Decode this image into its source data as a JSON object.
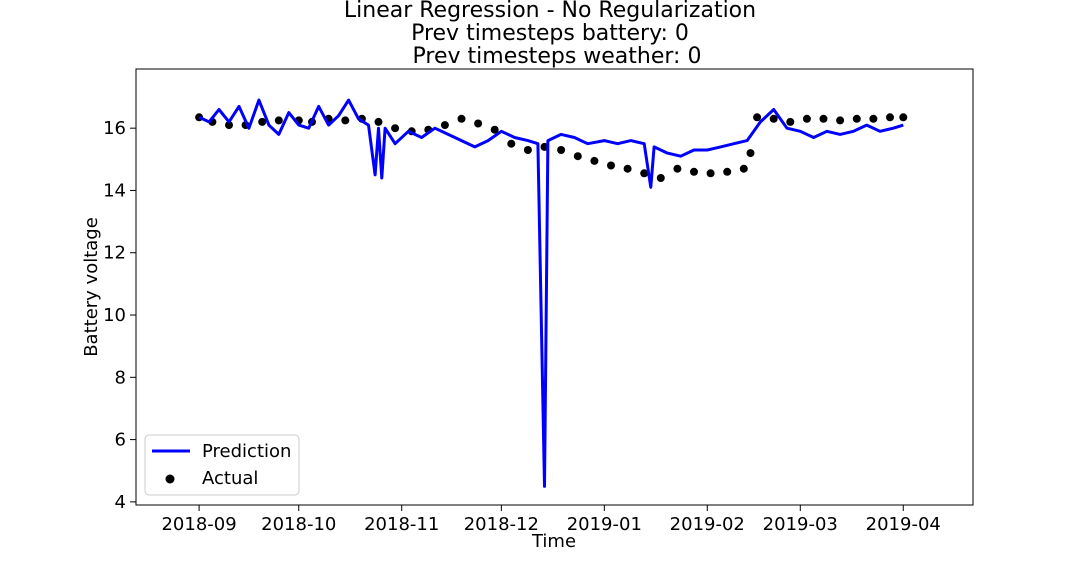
{
  "chart_data": {
    "type": "line",
    "title": [
      "Linear Regression - No Regularization",
      "Prev timesteps battery: 0",
      "Prev timesteps weather: 0"
    ],
    "xlabel": "Time",
    "ylabel": "Battery voltage",
    "xlim": [
      "2018-08-13",
      "2019-04-22"
    ],
    "ylim": [
      3.9,
      17.9
    ],
    "x_ticks": [
      "2018-09-01",
      "2018-10-01",
      "2018-11-01",
      "2018-12-01",
      "2019-01-01",
      "2019-02-01",
      "2019-03-01",
      "2019-04-01"
    ],
    "x_tick_labels": [
      "2018-09",
      "2018-10",
      "2018-11",
      "2018-12",
      "2019-01",
      "2019-02",
      "2019-03",
      "2019-04"
    ],
    "y_ticks": [
      4,
      6,
      8,
      10,
      12,
      14,
      16
    ],
    "y_tick_labels": [
      "4",
      "6",
      "8",
      "10",
      "12",
      "14",
      "16"
    ],
    "grid": false,
    "legend": {
      "placement": "lower-left"
    },
    "series": [
      {
        "name": "Prediction",
        "kind": "line",
        "color": "#0000ff",
        "points": [
          [
            "2018-09-01",
            16.35
          ],
          [
            "2018-09-04",
            16.2
          ],
          [
            "2018-09-07",
            16.6
          ],
          [
            "2018-09-10",
            16.2
          ],
          [
            "2018-09-13",
            16.7
          ],
          [
            "2018-09-16",
            16.0
          ],
          [
            "2018-09-19",
            16.9
          ],
          [
            "2018-09-22",
            16.1
          ],
          [
            "2018-09-25",
            15.8
          ],
          [
            "2018-09-28",
            16.5
          ],
          [
            "2018-10-01",
            16.1
          ],
          [
            "2018-10-04",
            16.0
          ],
          [
            "2018-10-07",
            16.7
          ],
          [
            "2018-10-10",
            16.1
          ],
          [
            "2018-10-13",
            16.4
          ],
          [
            "2018-10-16",
            16.9
          ],
          [
            "2018-10-19",
            16.3
          ],
          [
            "2018-10-22",
            16.1
          ],
          [
            "2018-10-24",
            14.5
          ],
          [
            "2018-10-25",
            16.0
          ],
          [
            "2018-10-26",
            14.4
          ],
          [
            "2018-10-27",
            16.0
          ],
          [
            "2018-10-30",
            15.5
          ],
          [
            "2018-11-03",
            15.9
          ],
          [
            "2018-11-07",
            15.7
          ],
          [
            "2018-11-11",
            16.0
          ],
          [
            "2018-11-15",
            15.8
          ],
          [
            "2018-11-19",
            15.6
          ],
          [
            "2018-11-23",
            15.4
          ],
          [
            "2018-11-27",
            15.6
          ],
          [
            "2018-12-01",
            15.9
          ],
          [
            "2018-12-05",
            15.7
          ],
          [
            "2018-12-09",
            15.6
          ],
          [
            "2018-12-12",
            15.5
          ],
          [
            "2018-12-14",
            4.5
          ],
          [
            "2018-12-15",
            15.6
          ],
          [
            "2018-12-19",
            15.8
          ],
          [
            "2018-12-23",
            15.7
          ],
          [
            "2018-12-27",
            15.5
          ],
          [
            "2019-01-01",
            15.6
          ],
          [
            "2019-01-05",
            15.5
          ],
          [
            "2019-01-09",
            15.6
          ],
          [
            "2019-01-13",
            15.5
          ],
          [
            "2019-01-15",
            14.1
          ],
          [
            "2019-01-16",
            15.4
          ],
          [
            "2019-01-20",
            15.2
          ],
          [
            "2019-01-24",
            15.1
          ],
          [
            "2019-01-28",
            15.3
          ],
          [
            "2019-02-01",
            15.3
          ],
          [
            "2019-02-05",
            15.4
          ],
          [
            "2019-02-09",
            15.5
          ],
          [
            "2019-02-13",
            15.6
          ],
          [
            "2019-02-17",
            16.2
          ],
          [
            "2019-02-21",
            16.6
          ],
          [
            "2019-02-25",
            16.0
          ],
          [
            "2019-03-01",
            15.9
          ],
          [
            "2019-03-05",
            15.7
          ],
          [
            "2019-03-09",
            15.9
          ],
          [
            "2019-03-13",
            15.8
          ],
          [
            "2019-03-17",
            15.9
          ],
          [
            "2019-03-21",
            16.1
          ],
          [
            "2019-03-25",
            15.9
          ],
          [
            "2019-03-29",
            16.0
          ],
          [
            "2019-04-01",
            16.1
          ]
        ]
      },
      {
        "name": "Actual",
        "kind": "scatter",
        "color": "#000000",
        "points": [
          [
            "2018-09-01",
            16.35
          ],
          [
            "2018-09-05",
            16.2
          ],
          [
            "2018-09-10",
            16.1
          ],
          [
            "2018-09-15",
            16.1
          ],
          [
            "2018-09-20",
            16.2
          ],
          [
            "2018-09-25",
            16.25
          ],
          [
            "2018-10-01",
            16.25
          ],
          [
            "2018-10-05",
            16.2
          ],
          [
            "2018-10-10",
            16.3
          ],
          [
            "2018-10-15",
            16.25
          ],
          [
            "2018-10-20",
            16.3
          ],
          [
            "2018-10-25",
            16.2
          ],
          [
            "2018-10-30",
            16.0
          ],
          [
            "2018-11-04",
            15.9
          ],
          [
            "2018-11-09",
            15.95
          ],
          [
            "2018-11-14",
            16.1
          ],
          [
            "2018-11-19",
            16.3
          ],
          [
            "2018-11-24",
            16.15
          ],
          [
            "2018-11-29",
            15.95
          ],
          [
            "2018-12-04",
            15.5
          ],
          [
            "2018-12-09",
            15.3
          ],
          [
            "2018-12-14",
            15.4
          ],
          [
            "2018-12-19",
            15.3
          ],
          [
            "2018-12-24",
            15.1
          ],
          [
            "2018-12-29",
            14.95
          ],
          [
            "2019-01-03",
            14.8
          ],
          [
            "2019-01-08",
            14.7
          ],
          [
            "2019-01-13",
            14.55
          ],
          [
            "2019-01-18",
            14.4
          ],
          [
            "2019-01-23",
            14.7
          ],
          [
            "2019-01-28",
            14.6
          ],
          [
            "2019-02-02",
            14.55
          ],
          [
            "2019-02-07",
            14.6
          ],
          [
            "2019-02-12",
            14.7
          ],
          [
            "2019-02-14",
            15.2
          ],
          [
            "2019-02-16",
            16.35
          ],
          [
            "2019-02-21",
            16.3
          ],
          [
            "2019-02-26",
            16.2
          ],
          [
            "2019-03-03",
            16.3
          ],
          [
            "2019-03-08",
            16.3
          ],
          [
            "2019-03-13",
            16.25
          ],
          [
            "2019-03-18",
            16.3
          ],
          [
            "2019-03-23",
            16.3
          ],
          [
            "2019-03-28",
            16.35
          ],
          [
            "2019-04-01",
            16.35
          ]
        ]
      }
    ]
  }
}
